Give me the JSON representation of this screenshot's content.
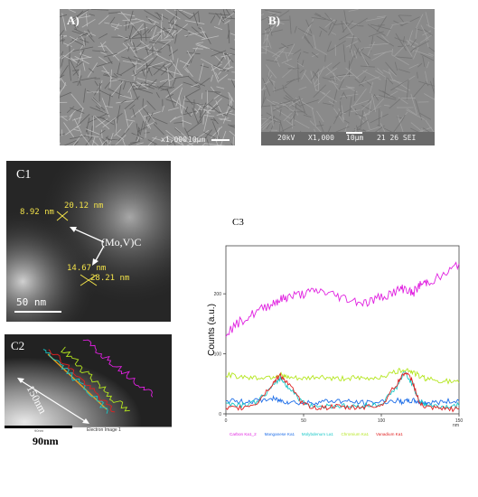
{
  "panels": {
    "a": {
      "label": "A)",
      "bar_mag": "x1,000",
      "bar_scale": "10µm"
    },
    "b": {
      "label": "B)",
      "bar_kv": "20kV",
      "bar_mag": "X1,000",
      "bar_scale": "10µm",
      "bar_info": "21 26 SEI"
    },
    "c1": {
      "label": "C1",
      "m1": "8.92 nm",
      "m2": "20.12 nm",
      "m3": "14.67 nm",
      "m4": "28.21 nm",
      "annotation": "(Mo,V)C",
      "scale": "50 nm"
    },
    "c2": {
      "label": "C2",
      "line_length": "150nm",
      "strip_text": "Electron Image 1",
      "strip_small": "90nm"
    },
    "c3": {
      "label": "C3"
    }
  },
  "outer_scale": "90nm",
  "chart_data": {
    "type": "line",
    "title": "C3",
    "xlabel": "nm",
    "ylabel": "Counts (a.u.)",
    "xlim": [
      0,
      150
    ],
    "ylim": [
      0,
      280
    ],
    "xticks": [
      0,
      50,
      100,
      150
    ],
    "yticks": [
      0,
      100,
      200
    ],
    "x": [
      0,
      10,
      20,
      30,
      35,
      40,
      50,
      60,
      70,
      80,
      90,
      100,
      110,
      115,
      120,
      125,
      130,
      140,
      150
    ],
    "series": [
      {
        "name": "Carbon Ka1_2",
        "color": "#e020e0",
        "values": [
          135,
          155,
          170,
          185,
          190,
          195,
          200,
          205,
          198,
          190,
          185,
          195,
          205,
          210,
          200,
          215,
          220,
          230,
          250
        ]
      },
      {
        "name": "Manganese Ka1",
        "color": "#1e6ee8",
        "values": [
          22,
          20,
          22,
          25,
          22,
          20,
          18,
          20,
          22,
          20,
          18,
          20,
          22,
          20,
          22,
          20,
          18,
          20,
          22
        ]
      },
      {
        "name": "Molybdenum La1",
        "color": "#19c8c8",
        "values": [
          18,
          15,
          20,
          45,
          60,
          45,
          18,
          12,
          14,
          12,
          14,
          16,
          45,
          70,
          50,
          20,
          14,
          12,
          14
        ]
      },
      {
        "name": "Chromium Ka1",
        "color": "#b4e61e",
        "values": [
          65,
          62,
          60,
          62,
          65,
          60,
          58,
          62,
          58,
          60,
          58,
          62,
          70,
          75,
          70,
          62,
          58,
          55,
          52
        ]
      },
      {
        "name": "Vanadium Ka1",
        "color": "#e02020",
        "values": [
          8,
          10,
          18,
          50,
          65,
          50,
          15,
          10,
          12,
          10,
          12,
          14,
          50,
          70,
          55,
          15,
          10,
          8,
          8
        ]
      }
    ],
    "legend_position": "bottom"
  }
}
